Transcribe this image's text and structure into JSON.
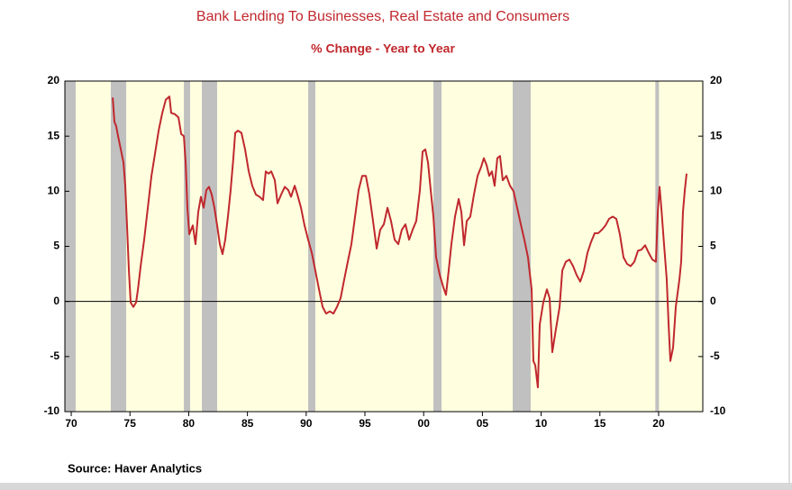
{
  "chart_data": {
    "type": "line",
    "title": "Bank Lending To Businesses, Real Estate and Consumers",
    "subtitle": "% Change - Year to Year",
    "source": "Source:  Haver Analytics",
    "xlim": [
      1969.46,
      2023.76
    ],
    "xticks": [
      {
        "value": 1970,
        "label": "70"
      },
      {
        "value": 1975,
        "label": "75"
      },
      {
        "value": 1980,
        "label": "80"
      },
      {
        "value": 1985,
        "label": "85"
      },
      {
        "value": 1990,
        "label": "90"
      },
      {
        "value": 1995,
        "label": "95"
      },
      {
        "value": 2000,
        "label": "00"
      },
      {
        "value": 2005,
        "label": "05"
      },
      {
        "value": 2010,
        "label": "10"
      },
      {
        "value": 2015,
        "label": "15"
      },
      {
        "value": 2020,
        "label": "20"
      }
    ],
    "ylim": [
      -10,
      20
    ],
    "yticks": [
      20,
      15,
      10,
      5,
      0,
      -5,
      -10
    ],
    "y2lim": [
      -10,
      20
    ],
    "y2ticks": [
      20,
      15,
      10,
      5,
      0,
      -5,
      -10
    ],
    "background": "#ffffe0",
    "shade_color": "#c0c0c0",
    "shaded_periods": [
      [
        1969.46,
        1970.38
      ],
      [
        1973.37,
        1974.68
      ],
      [
        1979.59,
        1980.12
      ],
      [
        1981.12,
        1982.42
      ],
      [
        1990.17,
        1990.78
      ],
      [
        2000.83,
        2001.52
      ],
      [
        2007.58,
        2009.11
      ],
      [
        2019.72,
        2020.03
      ]
    ],
    "series": [
      {
        "color": "#c0282d",
        "x": [
          1973.53,
          1973.68,
          1973.83,
          1973.99,
          1974.22,
          1974.45,
          1974.6,
          1974.75,
          1974.91,
          1975.06,
          1975.29,
          1975.52,
          1975.68,
          1975.91,
          1976.21,
          1976.52,
          1976.83,
          1977.13,
          1977.44,
          1977.75,
          1978.05,
          1978.36,
          1978.51,
          1978.82,
          1979.13,
          1979.36,
          1979.59,
          1979.74,
          1979.89,
          1980.05,
          1980.2,
          1980.35,
          1980.58,
          1980.81,
          1981.04,
          1981.27,
          1981.5,
          1981.73,
          1981.96,
          1982.19,
          1982.42,
          1982.65,
          1982.88,
          1983.11,
          1983.34,
          1983.57,
          1983.8,
          1983.96,
          1984.19,
          1984.49,
          1984.8,
          1985.11,
          1985.41,
          1985.72,
          1986.03,
          1986.33,
          1986.56,
          1986.8,
          1987.03,
          1987.33,
          1987.56,
          1987.87,
          1988.18,
          1988.48,
          1988.71,
          1989.02,
          1989.25,
          1989.56,
          1989.86,
          1990.17,
          1990.48,
          1990.78,
          1991.09,
          1991.4,
          1991.7,
          1992.01,
          1992.32,
          1992.62,
          1992.93,
          1993.24,
          1993.54,
          1993.85,
          1994.16,
          1994.46,
          1994.77,
          1995.08,
          1995.38,
          1995.69,
          1996.0,
          1996.3,
          1996.61,
          1996.92,
          1997.22,
          1997.53,
          1997.84,
          1998.14,
          1998.45,
          1998.76,
          1999.06,
          1999.37,
          1999.68,
          1999.91,
          2000.14,
          2000.37,
          2000.6,
          2000.83,
          2001.06,
          2001.37,
          2001.67,
          2001.9,
          2002.13,
          2002.36,
          2002.67,
          2002.98,
          2003.21,
          2003.44,
          2003.67,
          2003.97,
          2004.28,
          2004.59,
          2004.89,
          2005.12,
          2005.35,
          2005.58,
          2005.81,
          2006.04,
          2006.27,
          2006.5,
          2006.73,
          2007.04,
          2007.35,
          2007.65,
          2007.96,
          2008.27,
          2008.57,
          2008.88,
          2009.19,
          2009.34,
          2009.5,
          2009.72,
          2009.88,
          2010.18,
          2010.49,
          2010.72,
          2010.95,
          2011.26,
          2011.57,
          2011.8,
          2012.1,
          2012.41,
          2012.72,
          2013.02,
          2013.33,
          2013.64,
          2013.94,
          2014.25,
          2014.56,
          2014.86,
          2015.17,
          2015.48,
          2015.78,
          2016.09,
          2016.4,
          2016.7,
          2017.01,
          2017.32,
          2017.62,
          2017.93,
          2018.24,
          2018.54,
          2018.85,
          2019.16,
          2019.47,
          2019.77,
          2019.93,
          2020.08,
          2020.23,
          2020.46,
          2020.69,
          2020.85,
          2021.0,
          2021.23,
          2021.46,
          2021.77,
          2021.92,
          2022.07,
          2022.23,
          2022.38
        ],
        "values": [
          18.5,
          16.3,
          15.9,
          15,
          13.8,
          12.6,
          10.5,
          6.9,
          2.8,
          -0.1,
          -0.5,
          -0.1,
          1.1,
          3.2,
          5.6,
          8.5,
          11.4,
          13.4,
          15.5,
          17.1,
          18.3,
          18.6,
          17.1,
          17,
          16.7,
          15.2,
          15,
          12.6,
          8.5,
          6.1,
          6.5,
          6.9,
          5.2,
          8.1,
          9.5,
          8.5,
          10.1,
          10.4,
          9.7,
          8.5,
          6.9,
          5.2,
          4.3,
          5.6,
          7.7,
          10.1,
          13,
          15.3,
          15.5,
          15.3,
          13.8,
          11.8,
          10.5,
          9.7,
          9.5,
          9.2,
          11.8,
          11.6,
          11.8,
          11,
          8.9,
          9.7,
          10.4,
          10.1,
          9.5,
          10.5,
          9.7,
          8.5,
          6.9,
          5.6,
          4.4,
          2.8,
          1.1,
          -0.5,
          -1.1,
          -0.9,
          -1.1,
          -0.5,
          0.3,
          2,
          3.6,
          5.2,
          7.7,
          10.1,
          11.4,
          11.4,
          9.7,
          7.3,
          4.8,
          6.5,
          7,
          8.5,
          7.3,
          5.6,
          5.2,
          6.5,
          7,
          5.6,
          6.5,
          7.3,
          10.1,
          13.6,
          13.8,
          12.6,
          10.1,
          7.7,
          4,
          2.4,
          1.3,
          0.6,
          2.8,
          5.2,
          7.7,
          9.3,
          8.1,
          5.1,
          7.3,
          7.7,
          9.7,
          11.4,
          12.2,
          13,
          12.4,
          11.4,
          11.8,
          10.5,
          13,
          13.2,
          11,
          11.4,
          10.5,
          10,
          8.5,
          7,
          5.6,
          4,
          1.1,
          -5.4,
          -5.8,
          -7.8,
          -2.1,
          -0.1,
          1.1,
          0.3,
          -4.6,
          -2.5,
          -0.5,
          2.8,
          3.6,
          3.8,
          3.2,
          2.4,
          1.8,
          2.8,
          4.4,
          5.4,
          6.2,
          6.2,
          6.5,
          6.9,
          7.5,
          7.7,
          7.5,
          6.1,
          4,
          3.4,
          3.2,
          3.6,
          4.6,
          4.7,
          5.1,
          4.4,
          3.8,
          3.6,
          8.1,
          10.4,
          8.5,
          5.2,
          2,
          -2.1,
          -5.4,
          -4.2,
          -0.5,
          2,
          3.6,
          8.1,
          10.1,
          11.6
        ]
      }
    ]
  }
}
